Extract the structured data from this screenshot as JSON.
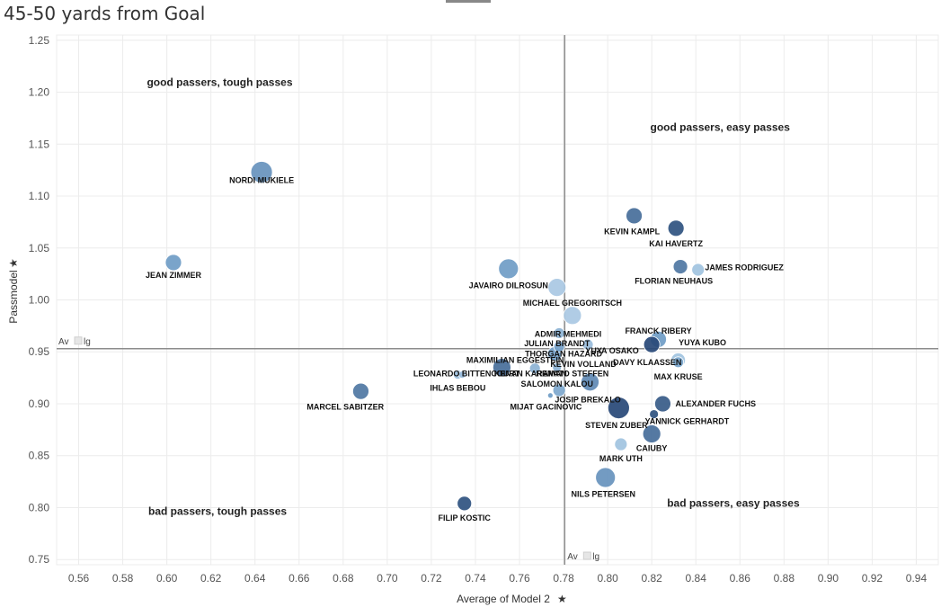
{
  "header": {
    "title": "45-50 yards from Goal"
  },
  "chart_data": {
    "type": "scatter",
    "title": "45-50 yards from Goal",
    "xlabel": "Average of Model 2",
    "ylabel": "Passmodel",
    "xlim": [
      0.55,
      0.95
    ],
    "ylim": [
      0.745,
      1.255
    ],
    "xticks": [
      "0.56",
      "0.58",
      "0.60",
      "0.62",
      "0.64",
      "0.66",
      "0.68",
      "0.70",
      "0.72",
      "0.74",
      "0.76",
      "0.78",
      "0.80",
      "0.82",
      "0.84",
      "0.86",
      "0.88",
      "0.90",
      "0.92",
      "0.94"
    ],
    "yticks": [
      "0.75",
      "0.80",
      "0.85",
      "0.90",
      "0.95",
      "1.00",
      "1.05",
      "1.10",
      "1.15",
      "1.20",
      "1.25"
    ],
    "ref_lines": {
      "x": 0.7805,
      "y": 0.953,
      "label": "Av",
      "label2": "lg"
    },
    "quadrant_labels": [
      {
        "text": "good passers, tough passes",
        "x": 0.624,
        "y": 1.206
      },
      {
        "text": "good passers, easy passes",
        "x": 0.851,
        "y": 1.163
      },
      {
        "text": "bad passers, tough passes",
        "x": 0.623,
        "y": 0.793
      },
      {
        "text": "bad passers, easy passes",
        "x": 0.857,
        "y": 0.801
      }
    ],
    "colors": {
      "light": "#b7d3ea",
      "mid": "#6f9cc6",
      "dark": "#1f3f6e",
      "grid": "#ececec",
      "refline": "#8c8c8c"
    },
    "points": [
      {
        "name": "NORDI MUKIELE",
        "x": 0.643,
        "y": 1.123,
        "size": 12,
        "shade": 0.55,
        "lx": 0.643,
        "ly": 1.115
      },
      {
        "name": "JEAN ZIMMER",
        "x": 0.603,
        "y": 1.036,
        "size": 9,
        "shade": 0.5,
        "lx": 0.603,
        "ly": 1.024
      },
      {
        "name": "KEVIN KAMPL",
        "x": 0.812,
        "y": 1.081,
        "size": 9,
        "shade": 0.75,
        "lx": 0.811,
        "ly": 1.066
      },
      {
        "name": "KAI HAVERTZ",
        "x": 0.831,
        "y": 1.069,
        "size": 9,
        "shade": 0.9,
        "lx": 0.831,
        "ly": 1.054
      },
      {
        "name": "JAMES RODRIGUEZ",
        "x": 0.841,
        "y": 1.029,
        "size": 7,
        "shade": 0.15,
        "lx": 0.862,
        "ly": 1.031
      },
      {
        "name": "FLORIAN NEUHAUS",
        "x": 0.833,
        "y": 1.032,
        "size": 8,
        "shade": 0.7,
        "lx": 0.83,
        "ly": 1.018
      },
      {
        "name": "JAVAIRO DILROSUN",
        "x": 0.755,
        "y": 1.03,
        "size": 11,
        "shade": 0.5,
        "lx": 0.755,
        "ly": 1.014
      },
      {
        "name": "MICHAEL GREGORITSCH",
        "x": 0.777,
        "y": 1.012,
        "size": 10,
        "shade": 0.1,
        "lx": 0.784,
        "ly": 0.997
      },
      {
        "name": "ADMIR MEHMEDI",
        "x": 0.784,
        "y": 0.985,
        "size": 10,
        "shade": 0.1,
        "lx": 0.782,
        "ly": 0.967
      },
      {
        "name": "JULIAN BRANDT",
        "x": 0.778,
        "y": 0.968,
        "size": 6,
        "shade": 0.3,
        "lx": 0.777,
        "ly": 0.958
      },
      {
        "name": "THORGAN HAZARD",
        "x": 0.778,
        "y": 0.955,
        "size": 6,
        "shade": 0.45,
        "lx": 0.78,
        "ly": 0.948
      },
      {
        "name": "YUYA OSAKO",
        "x": 0.791,
        "y": 0.957,
        "size": 6,
        "shade": 0.2,
        "lx": 0.802,
        "ly": 0.951
      },
      {
        "name": "FRANCK RIBERY",
        "x": 0.823,
        "y": 0.962,
        "size": 9,
        "shade": 0.5,
        "lx": 0.823,
        "ly": 0.97
      },
      {
        "name": "YUYA KUBO",
        "x": 0.82,
        "y": 0.957,
        "size": 9,
        "shade": 0.95,
        "lx": 0.843,
        "ly": 0.959
      },
      {
        "name": "DAVY KLAASSEN",
        "x": 0.832,
        "y": 0.942,
        "size": 8,
        "shade": 0.15,
        "lx": 0.818,
        "ly": 0.94
      },
      {
        "name": "MAX KRUSE",
        "x": 0.832,
        "y": 0.94,
        "size": 6,
        "shade": 0.4,
        "lx": 0.832,
        "ly": 0.926
      },
      {
        "name": "MAXIMILIAN EGGESTEIN",
        "x": 0.752,
        "y": 0.935,
        "size": 10,
        "shade": 0.75,
        "lx": 0.758,
        "ly": 0.942
      },
      {
        "name": "KEVIN VOLLAND",
        "x": 0.776,
        "y": 0.948,
        "size": 8,
        "shade": 0.45,
        "lx": 0.789,
        "ly": 0.938
      },
      {
        "name": "LEONARDO BITTENCOURT",
        "x": 0.732,
        "y": 0.928,
        "size": 5,
        "shade": 0.2,
        "lx": 0.736,
        "ly": 0.929
      },
      {
        "name": "KENAN KARAMAN",
        "x": 0.767,
        "y": 0.934,
        "size": 6,
        "shade": 0.3,
        "lx": 0.765,
        "ly": 0.929
      },
      {
        "name": "RENATO STEFFEN",
        "x": 0.777,
        "y": 0.935,
        "size": 5,
        "shade": 0.3,
        "lx": 0.784,
        "ly": 0.929
      },
      {
        "name": "SALOMON KALOU",
        "x": 0.792,
        "y": 0.921,
        "size": 10,
        "shade": 0.6,
        "lx": 0.777,
        "ly": 0.919
      },
      {
        "name": "IHLAS BEBOU",
        "x": 0.734,
        "y": 0.928,
        "size": 4,
        "shade": 0.2,
        "lx": 0.732,
        "ly": 0.915
      },
      {
        "name": "JOSIP BREKALO",
        "x": 0.778,
        "y": 0.913,
        "size": 7,
        "shade": 0.4,
        "lx": 0.791,
        "ly": 0.904
      },
      {
        "name": "MIJAT GACINOVIC",
        "x": 0.774,
        "y": 0.908,
        "size": 3,
        "shade": 0.5,
        "lx": 0.772,
        "ly": 0.897
      },
      {
        "name": "MARCEL SABITZER",
        "x": 0.688,
        "y": 0.912,
        "size": 9,
        "shade": 0.7,
        "lx": 0.681,
        "ly": 0.897
      },
      {
        "name": "ALEXANDER FUCHS",
        "x": 0.825,
        "y": 0.9,
        "size": 9,
        "shade": 0.85,
        "lx": 0.849,
        "ly": 0.9
      },
      {
        "name": "YANNICK GERHARDT",
        "x": 0.821,
        "y": 0.89,
        "size": 5,
        "shade": 0.9,
        "lx": 0.836,
        "ly": 0.883
      },
      {
        "name": "STEVEN ZUBER",
        "x": 0.805,
        "y": 0.896,
        "size": 12,
        "shade": 0.95,
        "lx": 0.804,
        "ly": 0.879
      },
      {
        "name": "CAIUBY",
        "x": 0.82,
        "y": 0.871,
        "size": 10,
        "shade": 0.75,
        "lx": 0.82,
        "ly": 0.857
      },
      {
        "name": "MARK UTH",
        "x": 0.806,
        "y": 0.861,
        "size": 7,
        "shade": 0.15,
        "lx": 0.806,
        "ly": 0.847
      },
      {
        "name": "NILS PETERSEN",
        "x": 0.799,
        "y": 0.829,
        "size": 11,
        "shade": 0.55,
        "lx": 0.798,
        "ly": 0.813
      },
      {
        "name": "FILIP KOSTIC",
        "x": 0.735,
        "y": 0.804,
        "size": 8,
        "shade": 0.9,
        "lx": 0.735,
        "ly": 0.79
      }
    ]
  }
}
